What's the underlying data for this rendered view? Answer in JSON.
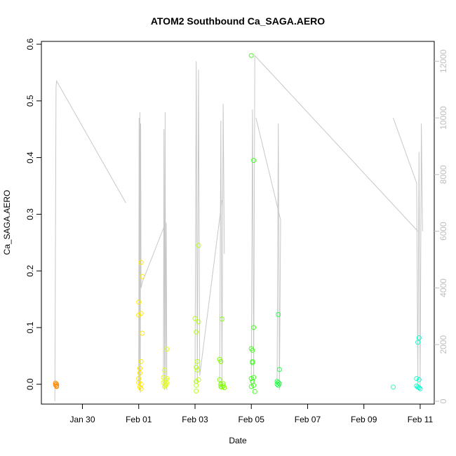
{
  "chart_data": {
    "type": "scatter",
    "title": "ATOM2 Southbound Ca_SAGA.AERO",
    "xlabel": "Date",
    "ylabel": "Ca_SAGA.AERO",
    "x_ticks": [
      "Jan 30",
      "Feb 01",
      "Feb 03",
      "Feb 05",
      "Feb 07",
      "Feb 09",
      "Feb 11"
    ],
    "xlim": [
      "2016-01-28T13:00",
      "2016-02-11T12:00"
    ],
    "y_ticks": [
      0.0,
      0.1,
      0.2,
      0.3,
      0.4,
      0.5,
      0.6
    ],
    "ylim": [
      -0.035,
      0.605
    ],
    "y2_ticks": [
      0,
      2000,
      4000,
      6000,
      8000,
      10000,
      12000
    ],
    "y2lim": [
      -100,
      12700
    ],
    "point_color_scale": [
      "#ff8c00",
      "#ffd700",
      "#e6ff1a",
      "#7fff00",
      "#00ff7f",
      "#00ffcc"
    ],
    "points": [
      {
        "x": "2016-01-29T01:00",
        "y": 0.002,
        "color": "#ff8c00"
      },
      {
        "x": "2016-01-29T01:00",
        "y": -0.001,
        "color": "#ff8c00"
      },
      {
        "x": "2016-01-29T02:00",
        "y": -0.003,
        "color": "#ff8c00"
      },
      {
        "x": "2016-01-29T02:00",
        "y": -0.004,
        "color": "#ff8c00"
      },
      {
        "x": "2016-01-29T02:00",
        "y": 0.0,
        "color": "#ff8c00"
      },
      {
        "x": "2016-02-01T00:00",
        "y": 0.145,
        "color": "#ffea00"
      },
      {
        "x": "2016-02-01T00:00",
        "y": 0.122,
        "color": "#ffea00"
      },
      {
        "x": "2016-02-01T00:00",
        "y": 0.01,
        "color": "#ffea00"
      },
      {
        "x": "2016-02-01T00:00",
        "y": 0.003,
        "color": "#ffea00"
      },
      {
        "x": "2016-02-01T01:00",
        "y": 0.028,
        "color": "#ffea00"
      },
      {
        "x": "2016-02-01T01:00",
        "y": 0.02,
        "color": "#ffea00"
      },
      {
        "x": "2016-02-01T01:00",
        "y": -0.005,
        "color": "#ffea00"
      },
      {
        "x": "2016-02-01T02:00",
        "y": 0.215,
        "color": "#ffea00"
      },
      {
        "x": "2016-02-01T02:00",
        "y": 0.125,
        "color": "#ffea00"
      },
      {
        "x": "2016-02-01T02:00",
        "y": 0.04,
        "color": "#ffea00"
      },
      {
        "x": "2016-02-01T02:00",
        "y": 0.0,
        "color": "#ffea00"
      },
      {
        "x": "2016-02-01T02:00",
        "y": -0.008,
        "color": "#ffea00"
      },
      {
        "x": "2016-02-01T03:00",
        "y": 0.19,
        "color": "#ffea00"
      },
      {
        "x": "2016-02-01T03:00",
        "y": 0.09,
        "color": "#ffea00"
      },
      {
        "x": "2016-02-01T21:00",
        "y": 0.012,
        "color": "#e6ff1a"
      },
      {
        "x": "2016-02-01T21:00",
        "y": 0.003,
        "color": "#e6ff1a"
      },
      {
        "x": "2016-02-01T22:00",
        "y": -0.004,
        "color": "#e6ff1a"
      },
      {
        "x": "2016-02-01T22:00",
        "y": 0.025,
        "color": "#e6ff1a"
      },
      {
        "x": "2016-02-01T23:00",
        "y": 0.008,
        "color": "#e6ff1a"
      },
      {
        "x": "2016-02-01T23:00",
        "y": 0.0,
        "color": "#e6ff1a"
      },
      {
        "x": "2016-02-01T23:00",
        "y": -0.002,
        "color": "#e6ff1a"
      },
      {
        "x": "2016-02-02T00:00",
        "y": 0.062,
        "color": "#e6ff1a"
      },
      {
        "x": "2016-02-02T00:00",
        "y": 0.01,
        "color": "#e6ff1a"
      },
      {
        "x": "2016-02-02T00:00",
        "y": 0.002,
        "color": "#e6ff1a"
      },
      {
        "x": "2016-02-03T00:00",
        "y": 0.116,
        "color": "#b8ff1a"
      },
      {
        "x": "2016-02-03T01:00",
        "y": 0.092,
        "color": "#b8ff1a"
      },
      {
        "x": "2016-02-03T01:00",
        "y": 0.03,
        "color": "#b8ff1a"
      },
      {
        "x": "2016-02-03T01:00",
        "y": 0.005,
        "color": "#b8ff1a"
      },
      {
        "x": "2016-02-03T01:00",
        "y": -0.002,
        "color": "#b8ff1a"
      },
      {
        "x": "2016-02-03T01:00",
        "y": -0.012,
        "color": "#b8ff1a"
      },
      {
        "x": "2016-02-03T02:00",
        "y": 0.04,
        "color": "#b8ff1a"
      },
      {
        "x": "2016-02-03T02:00",
        "y": 0.025,
        "color": "#b8ff1a"
      },
      {
        "x": "2016-02-03T03:00",
        "y": 0.245,
        "color": "#b8ff1a"
      },
      {
        "x": "2016-02-03T03:00",
        "y": 0.11,
        "color": "#b8ff1a"
      },
      {
        "x": "2016-02-03T03:00",
        "y": 0.008,
        "color": "#b8ff1a"
      },
      {
        "x": "2016-02-03T21:00",
        "y": 0.044,
        "color": "#7fff00"
      },
      {
        "x": "2016-02-03T21:00",
        "y": 0.008,
        "color": "#7fff00"
      },
      {
        "x": "2016-02-03T22:00",
        "y": 0.04,
        "color": "#7fff00"
      },
      {
        "x": "2016-02-03T22:00",
        "y": 0.0,
        "color": "#7fff00"
      },
      {
        "x": "2016-02-03T22:00",
        "y": -0.004,
        "color": "#7fff00"
      },
      {
        "x": "2016-02-03T23:00",
        "y": 0.115,
        "color": "#7fff00"
      },
      {
        "x": "2016-02-03T23:00",
        "y": -0.005,
        "color": "#7fff00"
      },
      {
        "x": "2016-02-04T00:00",
        "y": -0.003,
        "color": "#7fff00"
      },
      {
        "x": "2016-02-04T00:00",
        "y": 0.001,
        "color": "#7fff00"
      },
      {
        "x": "2016-02-04T01:00",
        "y": -0.006,
        "color": "#7fff00"
      },
      {
        "x": "2016-02-05T00:00",
        "y": 0.58,
        "color": "#44ff22"
      },
      {
        "x": "2016-02-05T00:00",
        "y": 0.063,
        "color": "#44ff22"
      },
      {
        "x": "2016-02-05T00:00",
        "y": 0.01,
        "color": "#44ff22"
      },
      {
        "x": "2016-02-05T00:00",
        "y": -0.004,
        "color": "#44ff22"
      },
      {
        "x": "2016-02-05T01:00",
        "y": 0.06,
        "color": "#44ff22"
      },
      {
        "x": "2016-02-05T01:00",
        "y": 0.04,
        "color": "#44ff22"
      },
      {
        "x": "2016-02-05T01:00",
        "y": 0.038,
        "color": "#44ff22"
      },
      {
        "x": "2016-02-05T01:00",
        "y": 0.005,
        "color": "#44ff22"
      },
      {
        "x": "2016-02-05T02:00",
        "y": 0.395,
        "color": "#44ff22"
      },
      {
        "x": "2016-02-05T02:00",
        "y": 0.1,
        "color": "#44ff22"
      },
      {
        "x": "2016-02-05T02:00",
        "y": 0.012,
        "color": "#44ff22"
      },
      {
        "x": "2016-02-05T02:00",
        "y": -0.002,
        "color": "#44ff22"
      },
      {
        "x": "2016-02-05T03:00",
        "y": -0.013,
        "color": "#44ff22"
      },
      {
        "x": "2016-02-05T22:00",
        "y": 0.005,
        "color": "#22ff44"
      },
      {
        "x": "2016-02-05T22:00",
        "y": 0.0,
        "color": "#22ff44"
      },
      {
        "x": "2016-02-05T23:00",
        "y": 0.123,
        "color": "#22ff44"
      },
      {
        "x": "2016-02-05T23:00",
        "y": 0.003,
        "color": "#22ff44"
      },
      {
        "x": "2016-02-05T23:00",
        "y": -0.002,
        "color": "#22ff44"
      },
      {
        "x": "2016-02-06T00:00",
        "y": 0.026,
        "color": "#22ff44"
      },
      {
        "x": "2016-02-06T00:00",
        "y": 0.001,
        "color": "#22ff44"
      },
      {
        "x": "2016-02-10T01:00",
        "y": -0.005,
        "color": "#22ffaa"
      },
      {
        "x": "2016-02-10T21:00",
        "y": 0.01,
        "color": "#11ffcc"
      },
      {
        "x": "2016-02-10T21:00",
        "y": -0.003,
        "color": "#11ffcc"
      },
      {
        "x": "2016-02-10T22:00",
        "y": 0.074,
        "color": "#11ffcc"
      },
      {
        "x": "2016-02-10T22:00",
        "y": -0.005,
        "color": "#11ffcc"
      },
      {
        "x": "2016-02-10T23:00",
        "y": 0.082,
        "color": "#11ffcc"
      },
      {
        "x": "2016-02-10T23:00",
        "y": 0.008,
        "color": "#11ffcc"
      },
      {
        "x": "2016-02-10T23:00",
        "y": -0.006,
        "color": "#11ffcc"
      },
      {
        "x": "2016-02-11T00:00",
        "y": -0.008,
        "color": "#11ffcc"
      }
    ],
    "altitude_series": {
      "color": "#c8c8c8",
      "segments": [
        [
          [
            "2016-01-29T00:30",
            0
          ],
          [
            "2016-01-29T01:30",
            11100
          ],
          [
            "2016-01-29T02:00",
            11300
          ],
          [
            "2016-01-31T13:00",
            7000
          ]
        ],
        [
          [
            "2016-02-01T00:00",
            600
          ],
          [
            "2016-02-01T00:20",
            10000
          ],
          [
            "2016-02-01T00:40",
            400
          ],
          [
            "2016-02-01T01:00",
            10200
          ],
          [
            "2016-02-01T01:20",
            300
          ],
          [
            "2016-02-01T01:40",
            9800
          ],
          [
            "2016-02-01T02:00",
            4000
          ],
          [
            "2016-02-01T03:00",
            4200
          ],
          [
            "2016-02-01T22:00",
            6200
          ]
        ],
        [
          [
            "2016-02-01T21:00",
            500
          ],
          [
            "2016-02-01T21:30",
            9600
          ],
          [
            "2016-02-01T22:00",
            400
          ],
          [
            "2016-02-01T22:30",
            10200
          ],
          [
            "2016-02-01T23:00",
            500
          ],
          [
            "2016-02-01T23:30",
            6300
          ],
          [
            "2016-02-02T00:00",
            400
          ]
        ],
        [
          [
            "2016-02-03T00:00",
            600
          ],
          [
            "2016-02-03T01:00",
            12000
          ],
          [
            "2016-02-03T02:00",
            600
          ],
          [
            "2016-02-03T03:00",
            11700
          ],
          [
            "2016-02-03T04:00",
            900
          ],
          [
            "2016-02-03T23:00",
            7100
          ]
        ],
        [
          [
            "2016-02-03T21:00",
            600
          ],
          [
            "2016-02-03T22:00",
            9900
          ],
          [
            "2016-02-03T23:00",
            500
          ],
          [
            "2016-02-04T00:00",
            10500
          ],
          [
            "2016-02-04T01:00",
            5200
          ]
        ],
        [
          [
            "2016-02-05T00:00",
            600
          ],
          [
            "2016-02-05T01:00",
            10300
          ],
          [
            "2016-02-05T02:00",
            400
          ],
          [
            "2016-02-05T03:00",
            12200
          ],
          [
            "2016-02-10T22:00",
            6000
          ]
        ],
        [
          [
            "2016-02-05T22:00",
            600
          ],
          [
            "2016-02-05T23:00",
            9800
          ],
          [
            "2016-02-06T00:00",
            400
          ],
          [
            "2016-02-06T01:00",
            6400
          ],
          [
            "2016-02-05T04:00",
            10000
          ]
        ],
        [
          [
            "2016-02-10T01:00",
            10000
          ],
          [
            "2016-02-10T21:00",
            7700
          ],
          [
            "2016-02-10T22:00",
            600
          ],
          [
            "2016-02-10T23:00",
            8800
          ],
          [
            "2016-02-11T00:00",
            500
          ],
          [
            "2016-02-11T01:00",
            9800
          ],
          [
            "2016-02-11T02:00",
            6000
          ]
        ]
      ]
    }
  }
}
